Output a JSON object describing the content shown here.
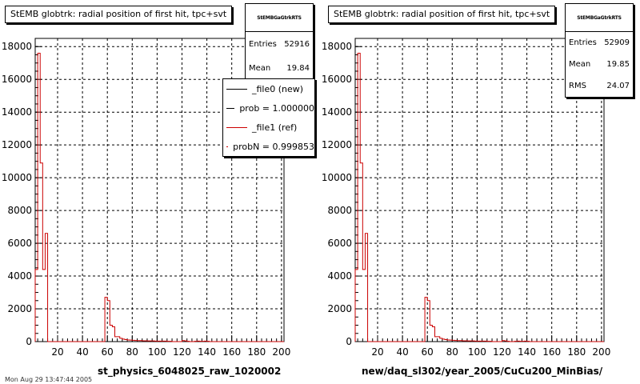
{
  "colors": {
    "new": "#000000",
    "ref": "#cc0000",
    "grid": "#000000"
  },
  "footer_text": "Mon Aug 29 13:47:44 2005",
  "pads": [
    {
      "title": "StEMB globtrk: radial position of first hit, tpc+svt",
      "stats": {
        "name": "StEMBGaGtrkRTS",
        "rows": [
          {
            "label": "Entries",
            "value": "52916"
          },
          {
            "label": "Mean",
            "value": "19.84"
          }
        ]
      },
      "legend": [
        {
          "label": "_file0 (new)",
          "color": "#000000"
        },
        {
          "label": "prob = 1.000000",
          "color": "#000000"
        },
        {
          "label": "_file1 (ref)",
          "color": "#cc0000"
        },
        {
          "label": "probN = 0.999853",
          "color": "#cc0000"
        }
      ],
      "xlabel": "st_physics_6048025_raw_1020002"
    },
    {
      "title": "StEMB globtrk: radial position of first hit, tpc+svt",
      "stats": {
        "name": "StEMBGaGtrkRTS",
        "rows": [
          {
            "label": "Entries",
            "value": "52909"
          },
          {
            "label": "Mean",
            "value": "19.85"
          },
          {
            "label": "RMS",
            "value": "24.07"
          }
        ]
      },
      "legend": [],
      "xlabel": "new/daq_sl302/year_2005/CuCu200_MinBias/"
    }
  ],
  "chart_data": [
    {
      "type": "histogram",
      "title": "StEMB globtrk: radial position of first hit, tpc+svt",
      "xlabel": "st_physics_6048025_raw_1020002",
      "ylabel": "",
      "xlim": [
        2,
        202
      ],
      "ylim": [
        0,
        18500
      ],
      "grid": true,
      "x_ticks": [
        20,
        40,
        60,
        80,
        100,
        120,
        140,
        160,
        180,
        200
      ],
      "y_ticks": [
        0,
        2000,
        4000,
        6000,
        8000,
        10000,
        12000,
        14000,
        16000,
        18000
      ],
      "legend_position": "top-right",
      "bin_width": 2,
      "series": [
        {
          "name": "_file1 (ref)",
          "bins": [
            [
              2,
              4400
            ],
            [
              4,
              17600
            ],
            [
              6,
              10900
            ],
            [
              8,
              4400
            ],
            [
              10,
              6600
            ],
            [
              12,
              0
            ],
            [
              58,
              2700
            ],
            [
              60,
              2500
            ],
            [
              62,
              1000
            ],
            [
              64,
              900
            ],
            [
              66,
              300
            ],
            [
              68,
              300
            ],
            [
              70,
              200
            ],
            [
              72,
              150
            ],
            [
              74,
              120
            ],
            [
              76,
              100
            ],
            [
              78,
              90
            ],
            [
              80,
              80
            ],
            [
              82,
              70
            ],
            [
              84,
              60
            ],
            [
              86,
              60
            ],
            [
              88,
              50
            ],
            [
              90,
              50
            ],
            [
              92,
              40
            ],
            [
              94,
              40
            ],
            [
              96,
              40
            ],
            [
              98,
              30
            ],
            [
              100,
              30
            ],
            [
              102,
              30
            ],
            [
              104,
              30
            ],
            [
              106,
              30
            ],
            [
              108,
              20
            ],
            [
              110,
              20
            ],
            [
              120,
              60
            ],
            [
              122,
              40
            ],
            [
              124,
              20
            ],
            [
              130,
              20
            ],
            [
              132,
              30
            ],
            [
              134,
              20
            ],
            [
              136,
              20
            ],
            [
              138,
              30
            ],
            [
              140,
              20
            ]
          ]
        }
      ]
    },
    {
      "type": "histogram",
      "title": "StEMB globtrk: radial position of first hit, tpc+svt",
      "xlabel": "new/daq_sl302/year_2005/CuCu200_MinBias/",
      "ylabel": "",
      "xlim": [
        2,
        202
      ],
      "ylim": [
        0,
        18500
      ],
      "grid": true,
      "x_ticks": [
        20,
        40,
        60,
        80,
        100,
        120,
        140,
        160,
        180,
        200
      ],
      "y_ticks": [
        0,
        2000,
        4000,
        6000,
        8000,
        10000,
        12000,
        14000,
        16000,
        18000
      ],
      "bin_width": 2,
      "series": [
        {
          "name": "",
          "bins": [
            [
              2,
              4400
            ],
            [
              4,
              17600
            ],
            [
              6,
              10900
            ],
            [
              8,
              4400
            ],
            [
              10,
              6600
            ],
            [
              12,
              0
            ],
            [
              58,
              2700
            ],
            [
              60,
              2500
            ],
            [
              62,
              1000
            ],
            [
              64,
              900
            ],
            [
              66,
              300
            ],
            [
              68,
              300
            ],
            [
              70,
              200
            ],
            [
              72,
              150
            ],
            [
              74,
              120
            ],
            [
              76,
              100
            ],
            [
              78,
              90
            ],
            [
              80,
              80
            ],
            [
              82,
              70
            ],
            [
              84,
              60
            ],
            [
              86,
              60
            ],
            [
              88,
              50
            ],
            [
              90,
              50
            ],
            [
              92,
              40
            ],
            [
              94,
              40
            ],
            [
              96,
              40
            ],
            [
              98,
              30
            ],
            [
              100,
              30
            ],
            [
              102,
              30
            ],
            [
              104,
              30
            ],
            [
              106,
              30
            ],
            [
              108,
              20
            ],
            [
              110,
              20
            ],
            [
              120,
              60
            ],
            [
              122,
              40
            ],
            [
              124,
              20
            ],
            [
              130,
              20
            ],
            [
              132,
              30
            ],
            [
              134,
              20
            ],
            [
              136,
              20
            ],
            [
              138,
              30
            ],
            [
              140,
              20
            ]
          ]
        }
      ]
    }
  ]
}
